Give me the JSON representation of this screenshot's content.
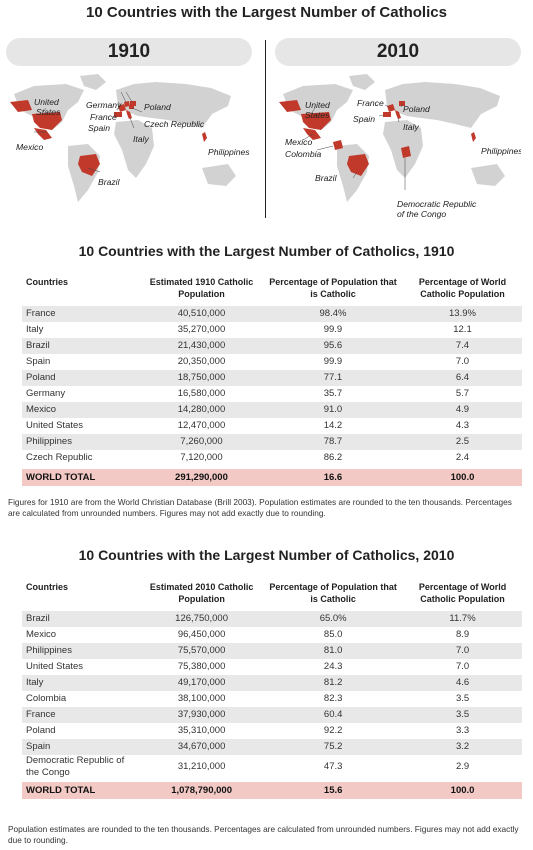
{
  "title": "10 Countries with the Largest Number of Catholics",
  "colors": {
    "highlight": "#c0392b",
    "land": "#d2d2d2",
    "total_row": "#f2c9c4",
    "alt_row": "#e8e8e8"
  },
  "maps": [
    {
      "year": "1910",
      "labels": [
        "United States",
        "Germany",
        "Poland",
        "France",
        "Spain",
        "Czech Republic",
        "Italy",
        "Mexico",
        "Brazil",
        "Philippines"
      ]
    },
    {
      "year": "2010",
      "labels": [
        "United States",
        "France",
        "Poland",
        "Spain",
        "Italy",
        "Mexico",
        "Colombia",
        "Brazil",
        "Philippines",
        "Democratic Republic of the Congo"
      ]
    }
  ],
  "table1910": {
    "title": "10 Countries with the Largest Number of Catholics, 1910",
    "columns": [
      "Countries",
      "Estimated 1910 Catholic Population",
      "Percentage of Population that is Catholic",
      "Percentage of World Catholic Population"
    ],
    "rows": [
      [
        "France",
        "40,510,000",
        "98.4%",
        "13.9%"
      ],
      [
        "Italy",
        "35,270,000",
        "99.9",
        "12.1"
      ],
      [
        "Brazil",
        "21,430,000",
        "95.6",
        "7.4"
      ],
      [
        "Spain",
        "20,350,000",
        "99.9",
        "7.0"
      ],
      [
        "Poland",
        "18,750,000",
        "77.1",
        "6.4"
      ],
      [
        "Germany",
        "16,580,000",
        "35.7",
        "5.7"
      ],
      [
        "Mexico",
        "14,280,000",
        "91.0",
        "4.9"
      ],
      [
        "United States",
        "12,470,000",
        "14.2",
        "4.3"
      ],
      [
        "Philippines",
        "7,260,000",
        "78.7",
        "2.5"
      ],
      [
        "Czech Republic",
        "7,120,000",
        "86.2",
        "2.4"
      ]
    ],
    "total": [
      "WORLD TOTAL",
      "291,290,000",
      "16.6",
      "100.0"
    ],
    "footnote": "Figures for 1910 are from the World Christian Database (Brill 2003). Population estimates are rounded to the ten thousands. Percentages are calculated from unrounded numbers. Figures may not add exactly due to rounding."
  },
  "table2010": {
    "title": "10 Countries with the Largest Number of Catholics, 2010",
    "columns": [
      "Countries",
      "Estimated 2010 Catholic Population",
      "Percentage of Population that is Catholic",
      "Percentage of World Catholic Population"
    ],
    "rows": [
      [
        "Brazil",
        "126,750,000",
        "65.0%",
        "11.7%"
      ],
      [
        "Mexico",
        "96,450,000",
        "85.0",
        "8.9"
      ],
      [
        "Philippines",
        "75,570,000",
        "81.0",
        "7.0"
      ],
      [
        "United States",
        "75,380,000",
        "24.3",
        "7.0"
      ],
      [
        "Italy",
        "49,170,000",
        "81.2",
        "4.6"
      ],
      [
        "Colombia",
        "38,100,000",
        "82.3",
        "3.5"
      ],
      [
        "France",
        "37,930,000",
        "60.4",
        "3.5"
      ],
      [
        "Poland",
        "35,310,000",
        "92.2",
        "3.3"
      ],
      [
        "Spain",
        "34,670,000",
        "75.2",
        "3.2"
      ],
      [
        "Democratic Republic of the Congo",
        "31,210,000",
        "47.3",
        "2.9"
      ]
    ],
    "total": [
      "WORLD TOTAL",
      "1,078,790,000",
      "15.6",
      "100.0"
    ],
    "footnote": "Population estimates are rounded to the ten thousands. Percentages are calculated from unrounded numbers. Figures may not add exactly due to rounding."
  }
}
